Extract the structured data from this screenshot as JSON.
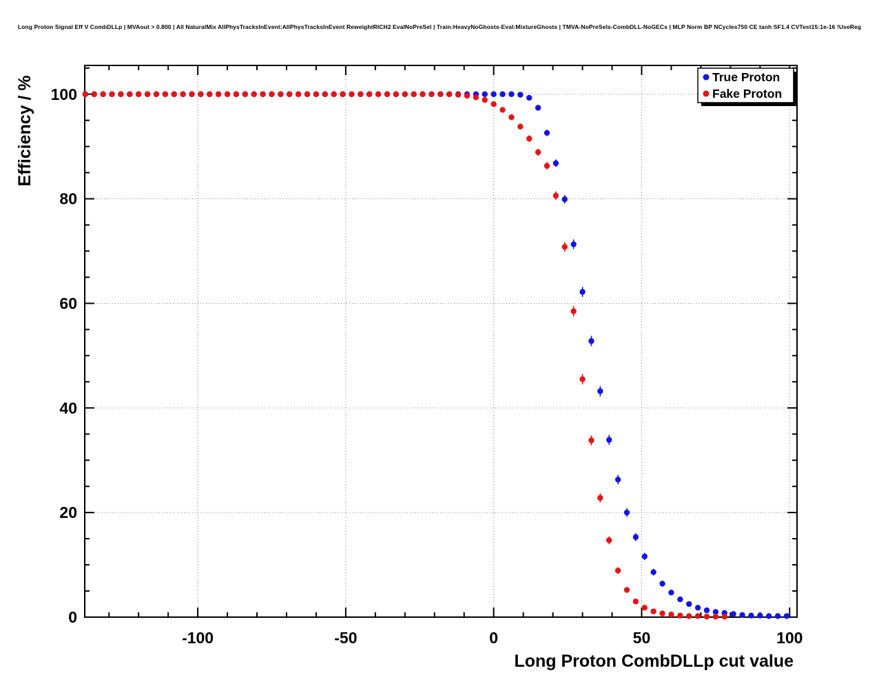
{
  "page": {
    "background": "#ffffff"
  },
  "title": "Long Proton Signal Eff V CombDLLp | MVAout > 0.800 | All NaturalMix AllPhysTracksInEvent:AllPhysTracksInEvent ReweightRICH2 EvalNoPreSel | Train:HeavyNoGhosts-Eval:MixtureGhosts | TMVA-NoPreSels-CombDLL-NoGECs | MLP Norm BP NCycles750 CE tanh SF1.4 CVTest15:1e-16 !UseReg",
  "chart_data": {
    "type": "scatter",
    "title": "Long Proton Signal Eff V CombDLLp",
    "xlabel": "Long Proton CombDLLp cut value",
    "ylabel": "Efficiency / %",
    "xlim": [
      -138.2,
      102.5
    ],
    "ylim": [
      0,
      105.5
    ],
    "x_ticks_major": [
      -100,
      -50,
      0,
      50,
      100
    ],
    "x_tick_labels": [
      "-100",
      "-50",
      "0",
      "50",
      "100"
    ],
    "x_minor_step": 10,
    "y_ticks_major": [
      0,
      20,
      40,
      60,
      80,
      100
    ],
    "y_tick_labels": [
      "0",
      "20",
      "40",
      "60",
      "80",
      "100"
    ],
    "y_minor_step": 5,
    "grid": "dotted",
    "grid_color": "#808080",
    "frame_color": "#000000",
    "legend": {
      "position": "top-right",
      "entries": [
        "True Proton",
        "Fake Proton"
      ]
    },
    "series": [
      {
        "name": "True Proton",
        "color": "#1414e6",
        "marker": "circle",
        "x": [
          -138,
          -135,
          -132,
          -129,
          -126,
          -123,
          -120,
          -117,
          -114,
          -111,
          -108,
          -105,
          -102,
          -99,
          -96,
          -93,
          -90,
          -87,
          -84,
          -81,
          -78,
          -75,
          -72,
          -69,
          -66,
          -63,
          -60,
          -57,
          -54,
          -51,
          -48,
          -45,
          -42,
          -39,
          -36,
          -33,
          -30,
          -27,
          -24,
          -21,
          -18,
          -15,
          -12,
          -9,
          -6,
          -3,
          0,
          3,
          6,
          9,
          12,
          15,
          18,
          21,
          24,
          27,
          30,
          33,
          36,
          39,
          42,
          45,
          48,
          51,
          54,
          57,
          60,
          63,
          66,
          69,
          72,
          75,
          78,
          81,
          84,
          87,
          90,
          93,
          96,
          99
        ],
        "values": [
          100,
          100,
          100,
          100,
          100,
          100,
          100,
          100,
          100,
          100,
          100,
          100,
          100,
          100,
          100,
          100,
          100,
          100,
          100,
          100,
          100,
          100,
          100,
          100,
          100,
          100,
          100,
          100,
          100,
          100,
          100,
          100,
          100,
          100,
          100,
          100,
          100,
          100,
          100,
          100,
          100,
          100,
          100,
          100,
          100,
          100,
          100,
          100,
          100,
          99.9,
          99.3,
          97.4,
          92.6,
          86.8,
          79.9,
          71.3,
          62.2,
          52.8,
          43.2,
          33.9,
          26.3,
          20.0,
          15.3,
          11.6,
          8.6,
          6.4,
          4.7,
          3.4,
          2.5,
          1.8,
          1.3,
          1.0,
          0.8,
          0.6,
          0.4,
          0.3,
          0.3,
          0.2,
          0.2,
          0.2
        ]
      },
      {
        "name": "Fake Proton",
        "color": "#e61414",
        "marker": "circle",
        "x": [
          -138,
          -135,
          -132,
          -129,
          -126,
          -123,
          -120,
          -117,
          -114,
          -111,
          -108,
          -105,
          -102,
          -99,
          -96,
          -93,
          -90,
          -87,
          -84,
          -81,
          -78,
          -75,
          -72,
          -69,
          -66,
          -63,
          -60,
          -57,
          -54,
          -51,
          -48,
          -45,
          -42,
          -39,
          -36,
          -33,
          -30,
          -27,
          -24,
          -21,
          -18,
          -15,
          -12,
          -9,
          -6,
          -3,
          0,
          3,
          6,
          9,
          12,
          15,
          18,
          21,
          24,
          27,
          30,
          33,
          36,
          39,
          42,
          45,
          48,
          51,
          54,
          57,
          60,
          63,
          66,
          69,
          72,
          75,
          78
        ],
        "values": [
          100,
          100,
          100,
          100,
          100,
          100,
          100,
          100,
          100,
          100,
          100,
          100,
          100,
          100,
          100,
          100,
          100,
          100,
          100,
          100,
          100,
          100,
          100,
          100,
          100,
          100,
          100,
          100,
          100,
          100,
          100,
          100,
          100,
          100,
          100,
          100,
          100,
          100,
          100,
          100,
          100,
          100,
          99.9,
          99.7,
          99.4,
          98.9,
          98.1,
          97.0,
          95.6,
          93.8,
          91.5,
          88.9,
          86.3,
          80.6,
          70.8,
          58.5,
          45.5,
          33.8,
          22.8,
          14.7,
          8.9,
          5.2,
          3.0,
          1.8,
          1.1,
          0.7,
          0.5,
          0.3,
          0.2,
          0.2,
          0.1,
          0.1,
          0.1
        ]
      }
    ]
  }
}
